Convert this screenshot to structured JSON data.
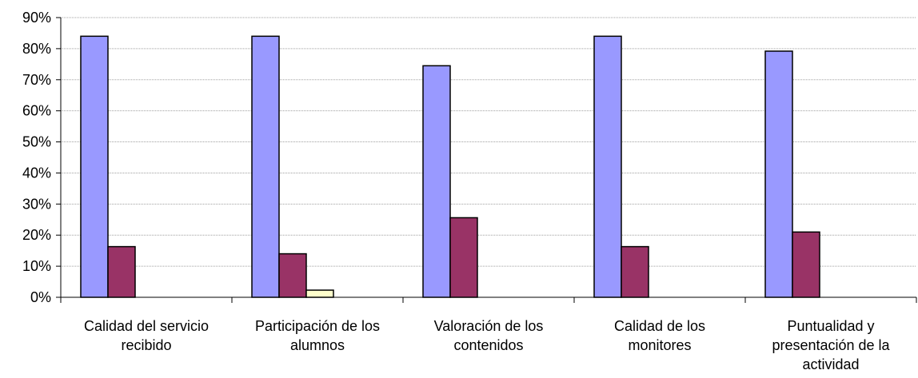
{
  "chart_data": {
    "type": "bar",
    "categories": [
      "Calidad del servicio recibido",
      "Participación de los alumnos",
      "Valoración de los contenidos",
      "Calidad de los monitores",
      "Puntualidad y presentación de la actividad"
    ],
    "category_lines": [
      [
        "Calidad del servicio",
        "recibido"
      ],
      [
        "Participación de los",
        "alumnos"
      ],
      [
        "Valoración de los",
        "contenidos"
      ],
      [
        "Calidad de los",
        "monitores"
      ],
      [
        "Puntualidad y",
        "presentación de la",
        "actividad"
      ]
    ],
    "series": [
      {
        "values": [
          84,
          84,
          74.5,
          84,
          79.2
        ],
        "color": "#9999ff"
      },
      {
        "values": [
          16.3,
          14,
          25.6,
          16.3,
          21
        ],
        "color": "#993366"
      },
      {
        "values": [
          0,
          2.3,
          0,
          0,
          0
        ],
        "color": "#ffffcc"
      }
    ],
    "ylim": [
      0,
      90
    ],
    "yticks": [
      0,
      10,
      20,
      30,
      40,
      50,
      60,
      70,
      80,
      90
    ],
    "ytick_labels": [
      "0%",
      "10%",
      "20%",
      "30%",
      "40%",
      "50%",
      "60%",
      "70%",
      "80%",
      "90%"
    ],
    "grid": true,
    "legend": "none",
    "title": "",
    "xlabel": "",
    "ylabel": ""
  }
}
